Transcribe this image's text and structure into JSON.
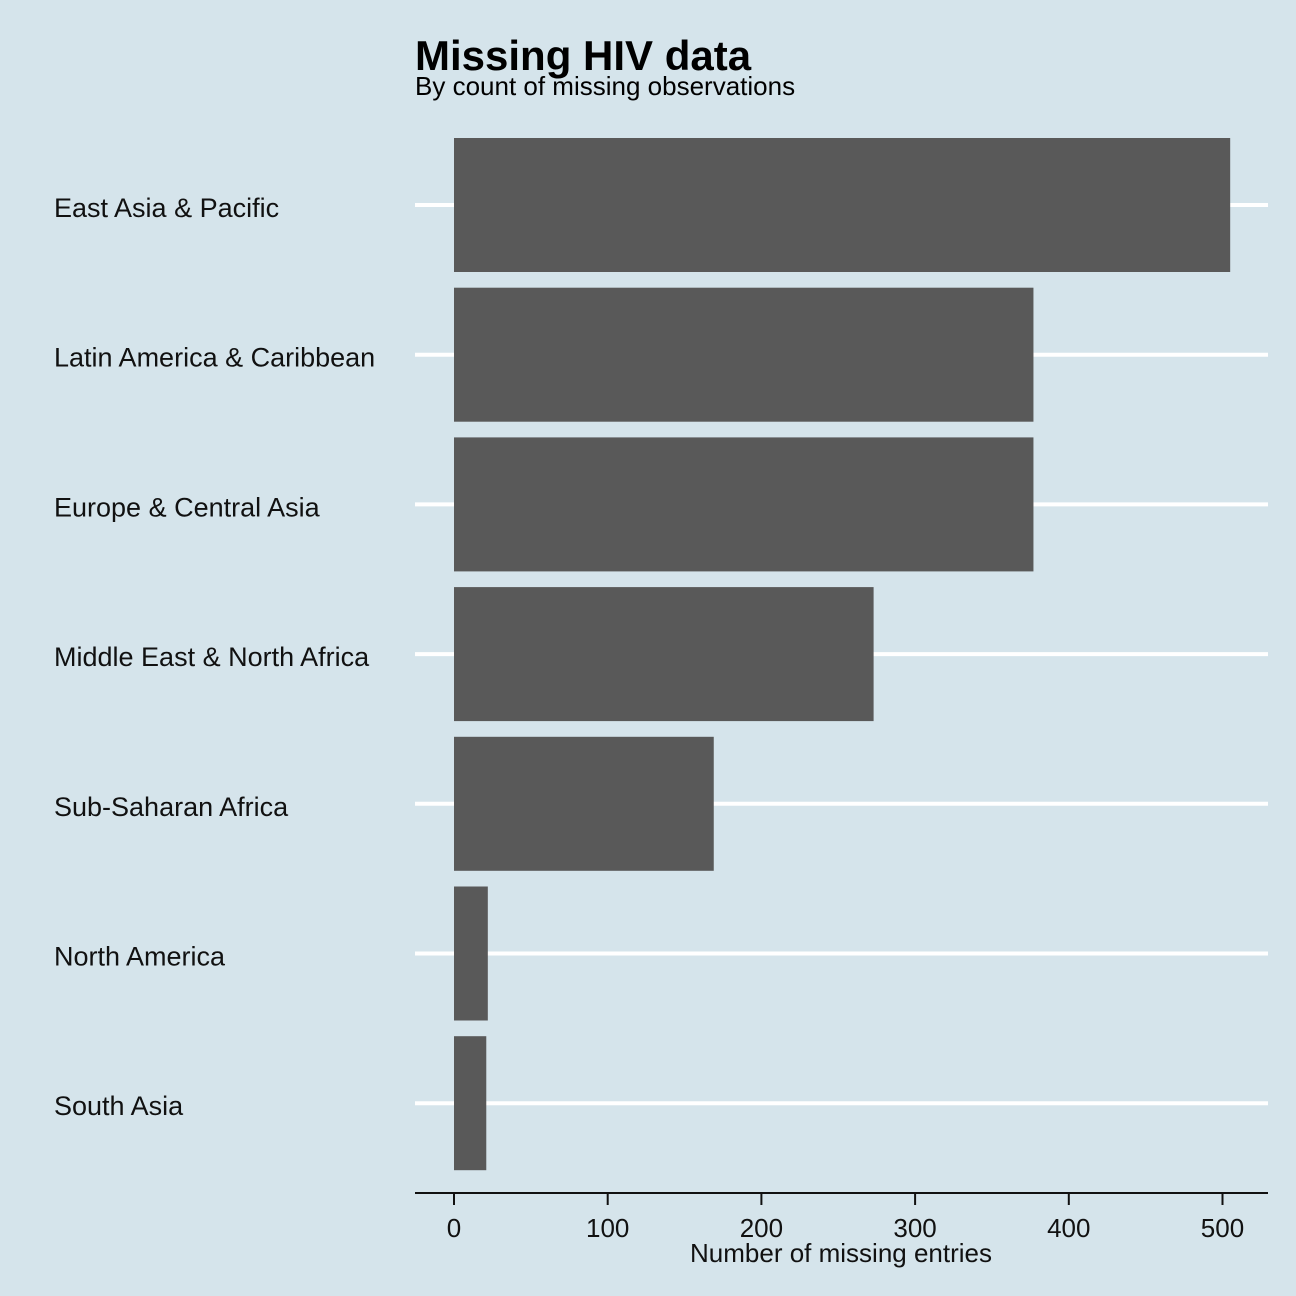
{
  "chart_data": {
    "type": "bar",
    "orientation": "horizontal",
    "title": "Missing HIV data",
    "subtitle": "By count of missing observations",
    "xlabel": "Number of missing entries",
    "ylabel": "",
    "categories": [
      "East Asia & Pacific",
      "Latin America & Caribbean",
      "Europe & Central Asia",
      "Middle East & North Africa",
      "Sub-Saharan Africa",
      "North America",
      "South Asia"
    ],
    "values": [
      505,
      377,
      377,
      273,
      169,
      22,
      21
    ],
    "xlim": [
      -25,
      530
    ],
    "xticks": [
      0,
      100,
      200,
      300,
      400,
      500
    ],
    "grid": "horizontal-major",
    "legend": "none",
    "colors": {
      "background": "#d5e4eb",
      "bar": "#595959",
      "grid": "#ffffff",
      "axis": "#111111"
    }
  }
}
